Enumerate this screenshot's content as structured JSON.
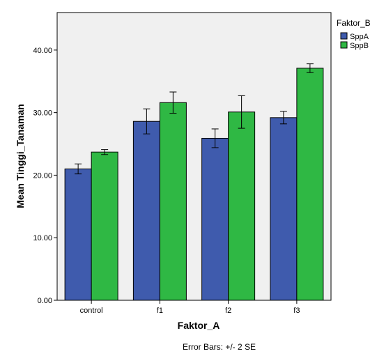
{
  "chart_data": {
    "type": "bar",
    "categories": [
      "control",
      "f1",
      "f2",
      "f3"
    ],
    "series": [
      {
        "name": "SppA",
        "color": "#3f5bad",
        "values": [
          21.0,
          28.6,
          25.9,
          29.2
        ],
        "error": [
          0.8,
          2.0,
          1.5,
          1.0
        ]
      },
      {
        "name": "SppB",
        "color": "#2fb844",
        "values": [
          23.7,
          31.6,
          30.1,
          37.1
        ],
        "error": [
          0.4,
          1.7,
          2.6,
          0.7
        ]
      }
    ],
    "xlabel": "Faktor_A",
    "ylabel": "Mean Tinggi_Tanaman",
    "legend_title": "Faktor_B",
    "legend_position": "top-right",
    "ylim": [
      0,
      46
    ],
    "yticks": [
      0,
      10,
      20,
      30,
      40
    ],
    "ytick_labels": [
      "0.00",
      "10.00",
      "20.00",
      "30.00",
      "40.00"
    ],
    "grid": false,
    "footnote": "Error Bars: +/- 2 SE",
    "plot_background": "#f0f0f0"
  }
}
